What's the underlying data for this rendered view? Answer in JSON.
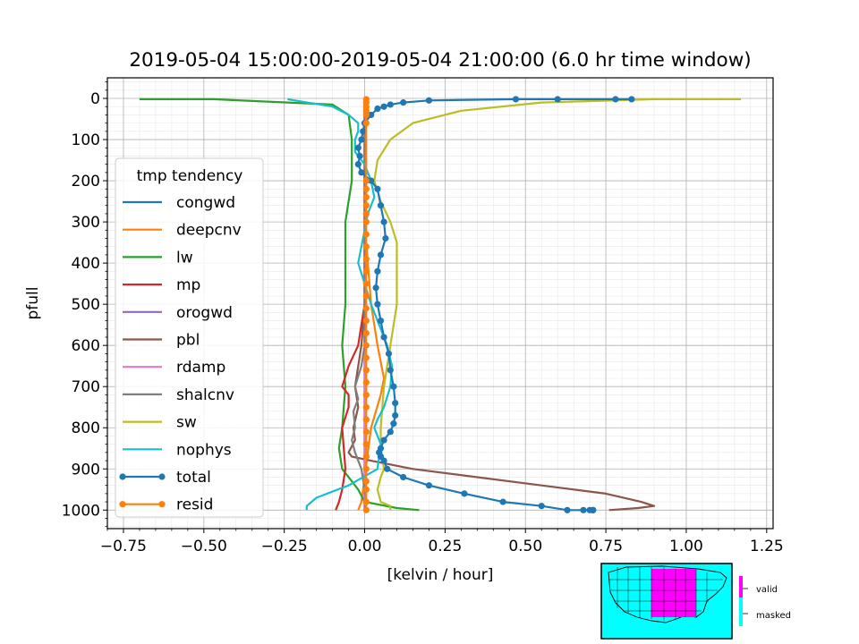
{
  "chart_data": {
    "type": "line",
    "title": "2019-05-04 15:00:00-2019-05-04 21:00:00 (6.0 hr time window)",
    "xlabel": "[kelvin / hour]",
    "ylabel": "pfull",
    "xlim": [
      -0.8,
      1.27
    ],
    "ylim": [
      1045,
      -50
    ],
    "y_inverted": true,
    "grid": true,
    "x_ticks": [
      -0.75,
      -0.5,
      -0.25,
      0.0,
      0.25,
      0.5,
      0.75,
      1.0,
      1.25
    ],
    "x_tick_labels": [
      "−0.75",
      "−0.50",
      "−0.25",
      "0.00",
      "0.25",
      "0.50",
      "0.75",
      "1.00",
      "1.25"
    ],
    "y_ticks": [
      0,
      100,
      200,
      300,
      400,
      500,
      600,
      700,
      800,
      900,
      1000
    ],
    "y_tick_labels": [
      "0",
      "100",
      "200",
      "300",
      "400",
      "500",
      "600",
      "700",
      "800",
      "900",
      "1000"
    ],
    "legend": {
      "title": "tmp tendency",
      "placement": "center-left",
      "labels": [
        "congwd",
        "deepcnv",
        "lw",
        "mp",
        "orogwd",
        "pbl",
        "rdamp",
        "shalcnv",
        "sw",
        "nophys",
        "total",
        "resid"
      ]
    },
    "series": [
      {
        "name": "congwd",
        "color": "#1f77b4",
        "marker": false,
        "x": [
          0,
          0,
          0,
          0,
          0,
          0,
          0,
          0,
          0,
          0,
          0,
          0,
          0
        ],
        "y": [
          2,
          50,
          100,
          200,
          300,
          400,
          500,
          600,
          700,
          800,
          900,
          950,
          1000
        ]
      },
      {
        "name": "deepcnv",
        "color": "#ff7f0e",
        "marker": false,
        "x": [
          0,
          0,
          0,
          0,
          0,
          0.01,
          0.02,
          0.04,
          0.06,
          0.05,
          0.02,
          0.01,
          0,
          -0.01,
          -0.02
        ],
        "y": [
          2,
          50,
          100,
          200,
          300,
          400,
          500,
          600,
          680,
          720,
          800,
          860,
          920,
          980,
          1000
        ]
      },
      {
        "name": "lw",
        "color": "#2ca02c",
        "marker": false,
        "x": [
          -0.7,
          -0.47,
          -0.1,
          -0.05,
          -0.04,
          -0.04,
          -0.05,
          -0.06,
          -0.06,
          -0.06,
          -0.065,
          -0.07,
          -0.065,
          -0.06,
          -0.065,
          -0.07,
          -0.08,
          -0.07,
          -0.04,
          -0.02,
          0,
          0.1,
          0.17
        ],
        "y": [
          2,
          2,
          15,
          40,
          100,
          200,
          250,
          300,
          400,
          500,
          550,
          600,
          650,
          700,
          750,
          800,
          850,
          900,
          930,
          950,
          980,
          995,
          1000
        ]
      },
      {
        "name": "mp",
        "color": "#d62728",
        "marker": false,
        "x": [
          0,
          0,
          0,
          0,
          0,
          0,
          -0.01,
          -0.02,
          -0.05,
          -0.07,
          -0.05,
          -0.05,
          -0.07,
          -0.065,
          -0.06,
          -0.07,
          -0.08,
          -0.09
        ],
        "y": [
          2,
          100,
          200,
          300,
          400,
          500,
          550,
          600,
          650,
          700,
          720,
          750,
          800,
          850,
          900,
          950,
          980,
          1000
        ]
      },
      {
        "name": "orogwd",
        "color": "#9467bd",
        "marker": false,
        "x": [
          0,
          0,
          0,
          0,
          0,
          0,
          0,
          0
        ],
        "y": [
          2,
          200,
          400,
          600,
          800,
          900,
          950,
          1000
        ]
      },
      {
        "name": "pbl",
        "color": "#8c564b",
        "marker": false,
        "x": [
          0,
          0,
          0,
          0,
          0,
          -0.01,
          -0.03,
          -0.02,
          -0.035,
          -0.03,
          -0.05,
          -0.04,
          0.02,
          0.15,
          0.35,
          0.55,
          0.75,
          0.86,
          0.9,
          0.85,
          0.76
        ],
        "y": [
          2,
          100,
          200,
          400,
          500,
          600,
          700,
          750,
          800,
          830,
          860,
          870,
          880,
          900,
          920,
          940,
          960,
          980,
          990,
          995,
          1000
        ]
      },
      {
        "name": "rdamp",
        "color": "#e377c2",
        "marker": false,
        "x": [
          0,
          0,
          0,
          0
        ],
        "y": [
          2,
          300,
          700,
          1000
        ]
      },
      {
        "name": "shalcnv",
        "color": "#7f7f7f",
        "marker": false,
        "x": [
          0,
          0,
          0,
          0,
          0,
          -0.01,
          -0.03,
          -0.02,
          -0.035,
          -0.03,
          -0.04,
          -0.03,
          -0.01,
          0,
          0.005,
          0
        ],
        "y": [
          2,
          200,
          400,
          500,
          600,
          650,
          700,
          730,
          760,
          800,
          830,
          860,
          900,
          950,
          980,
          1000
        ]
      },
      {
        "name": "sw",
        "color": "#bcbd22",
        "marker": false,
        "x": [
          1.17,
          0.9,
          0.55,
          0.3,
          0.15,
          0.08,
          0.04,
          0.03,
          0.05,
          0.08,
          0.1,
          0.1,
          0.1,
          0.09,
          0.08,
          0.07,
          0.06,
          0.055,
          0.05,
          0.05,
          0.06,
          0.05,
          0.04,
          0.05,
          0.08,
          0.08
        ],
        "y": [
          2,
          2,
          10,
          30,
          60,
          100,
          150,
          200,
          250,
          300,
          350,
          400,
          500,
          550,
          600,
          650,
          700,
          750,
          800,
          850,
          900,
          920,
          950,
          980,
          990,
          1000
        ]
      },
      {
        "name": "nophys",
        "color": "#17becf",
        "marker": false,
        "x": [
          -0.24,
          -0.1,
          -0.05,
          -0.02,
          -0.02,
          -0.03,
          -0.03,
          0,
          0.02,
          0.03,
          0.01,
          0,
          -0.01,
          -0.02,
          0,
          0.02,
          0.05,
          0.07,
          0.085,
          0.08,
          0.06,
          0.04,
          0.03,
          0.05,
          0.04,
          -0.05,
          -0.15,
          -0.18,
          -0.18
        ],
        "y": [
          2,
          20,
          40,
          60,
          80,
          100,
          130,
          160,
          200,
          240,
          280,
          320,
          360,
          400,
          450,
          500,
          560,
          600,
          650,
          700,
          750,
          780,
          800,
          840,
          900,
          940,
          970,
          990,
          1000
        ]
      },
      {
        "name": "total",
        "color": "#1f77b4",
        "marker": true,
        "x": [
          0.83,
          0.78,
          0.6,
          0.47,
          0.2,
          0.12,
          0.08,
          0.06,
          0.04,
          0.02,
          0,
          -0.005,
          -0.01,
          -0.02,
          -0.015,
          -0.02,
          -0.01,
          0.02,
          0.04,
          0.05,
          0.06,
          0.065,
          0.05,
          0.04,
          0.035,
          0.04,
          0.05,
          0.06,
          0.075,
          0.08,
          0.09,
          0.095,
          0.095,
          0.09,
          0.08,
          0.06,
          0.05,
          0.045,
          0.05,
          0.06,
          0.07,
          0.12,
          0.2,
          0.31,
          0.43,
          0.55,
          0.63,
          0.68,
          0.7,
          0.71,
          0.71,
          0.71
        ],
        "y": [
          2,
          2,
          2,
          2,
          5,
          10,
          15,
          20,
          25,
          40,
          60,
          80,
          100,
          120,
          140,
          160,
          180,
          200,
          220,
          260,
          300,
          340,
          380,
          420,
          460,
          500,
          540,
          580,
          620,
          660,
          700,
          740,
          770,
          790,
          810,
          830,
          850,
          860,
          870,
          880,
          900,
          920,
          940,
          960,
          980,
          990,
          1000,
          1000,
          1000,
          1000,
          1000,
          1000
        ]
      },
      {
        "name": "resid",
        "color": "#ff7f0e",
        "marker": true,
        "x": [
          0.005,
          0.005,
          0.005,
          0.005,
          0.005,
          0.005,
          0.005,
          0.005,
          0.005,
          0.005,
          0.005,
          0.005,
          0.005,
          0.005,
          0.005,
          0.005,
          0.005,
          0.005,
          0.005,
          0.005,
          0.005,
          0.005,
          0.005,
          0.005,
          0.005,
          0.005,
          0.005,
          0.005,
          0.005,
          0.005,
          0.005,
          0.005,
          0.005,
          0.005,
          0.005,
          0.005
        ],
        "y": [
          2,
          10,
          20,
          30,
          40,
          60,
          200,
          220,
          240,
          260,
          280,
          300,
          330,
          360,
          390,
          420,
          450,
          480,
          510,
          540,
          570,
          600,
          630,
          660,
          690,
          720,
          750,
          780,
          810,
          840,
          870,
          900,
          930,
          950,
          980,
          1000
        ]
      }
    ]
  },
  "inset_map": {
    "legend": {
      "valid_label": "valid",
      "masked_label": "masked"
    },
    "colors": {
      "valid": "#ff00ff",
      "masked": "#00ffff"
    }
  }
}
